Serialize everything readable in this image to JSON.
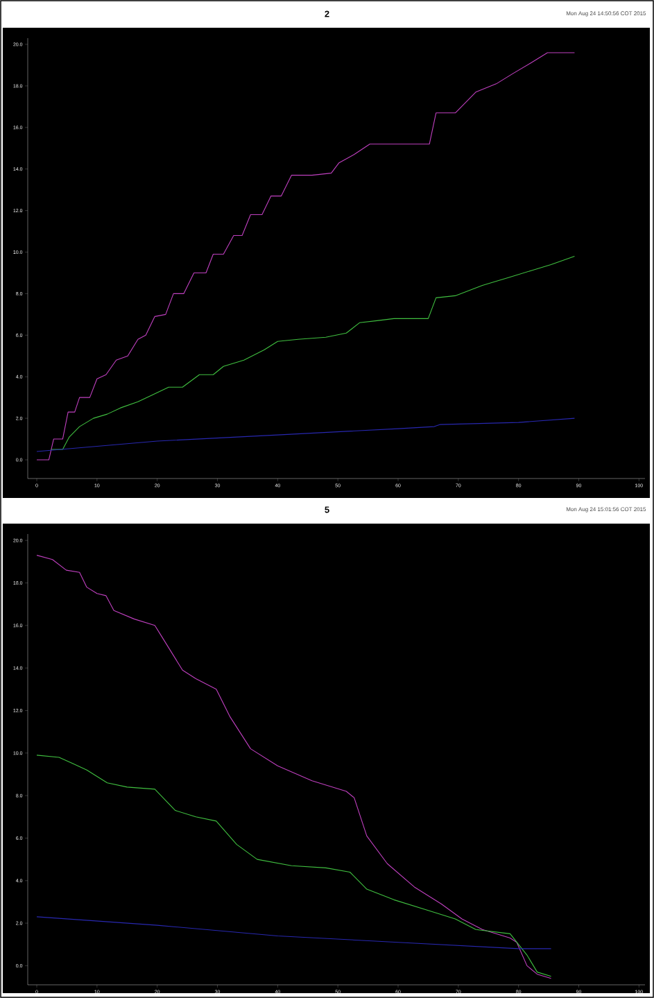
{
  "chart_data": [
    {
      "type": "line",
      "title": "2",
      "subtitle": "Mon Aug 24 14:50:56 COT 2015",
      "xlim": [
        -1.5,
        101
      ],
      "ylim": [
        -0.9,
        20.3
      ],
      "xticks": [
        0,
        10,
        20,
        30,
        40,
        50,
        60,
        70,
        80,
        90,
        100
      ],
      "yticks": [
        {
          "value": 0,
          "label": "0.0"
        },
        {
          "value": 2,
          "label": "2.0"
        },
        {
          "value": 4,
          "label": "4.0"
        },
        {
          "value": 6,
          "label": "6.0"
        },
        {
          "value": 8,
          "label": "8.0"
        },
        {
          "value": 10,
          "label": "10.0"
        },
        {
          "value": 12,
          "label": "12.0"
        },
        {
          "value": 14,
          "label": "14.0"
        },
        {
          "value": 16,
          "label": "16.0"
        },
        {
          "value": 18,
          "label": "18.0"
        },
        {
          "value": 20,
          "label": "20.0"
        }
      ],
      "series": [
        {
          "color": "#c040c0",
          "x": [
            0,
            2,
            2.8,
            4.3,
            5.2,
            6.3,
            7.1,
            8.8,
            10,
            11.5,
            13.2,
            15.1,
            16.8,
            18.1,
            19.6,
            21.4,
            22.7,
            24.4,
            26.1,
            28.1,
            29.3,
            31,
            32.7,
            34.1,
            35.5,
            37.4,
            38.9,
            40.6,
            42.3,
            45.7,
            48.9,
            50.2,
            52.7,
            55.3,
            56.5,
            65.2,
            66.3,
            69.5,
            72.9,
            76.3,
            79.1,
            82,
            84.8,
            87.4,
            89.3
          ],
          "values": [
            0,
            0,
            1.0,
            1.0,
            2.3,
            2.3,
            3.0,
            3.0,
            3.9,
            4.1,
            4.8,
            5.0,
            5.8,
            6.0,
            6.9,
            7.0,
            8.0,
            8.0,
            9.0,
            9.0,
            9.9,
            9.9,
            10.8,
            10.8,
            11.8,
            11.8,
            12.7,
            12.7,
            13.7,
            13.7,
            13.8,
            14.3,
            14.7,
            15.2,
            15.2,
            15.2,
            16.7,
            16.7,
            17.7,
            18.1,
            18.6,
            19.1,
            19.6,
            19.6,
            19.6
          ]
        },
        {
          "color": "#40c040",
          "x": [
            2.4,
            4.3,
            5.4,
            7.1,
            9.4,
            11.7,
            13.9,
            16.8,
            19,
            21.9,
            24.2,
            27,
            29.3,
            31,
            34.4,
            37.8,
            40,
            43.4,
            48,
            51.4,
            53.6,
            56.5,
            59.3,
            65,
            66.3,
            69.5,
            74,
            78.6,
            82,
            85.4,
            89.3
          ],
          "values": [
            0.5,
            0.5,
            1.1,
            1.6,
            2.0,
            2.2,
            2.5,
            2.8,
            3.1,
            3.5,
            3.5,
            4.1,
            4.1,
            4.5,
            4.8,
            5.3,
            5.7,
            5.8,
            5.9,
            6.1,
            6.6,
            6.7,
            6.8,
            6.8,
            7.8,
            7.9,
            8.4,
            8.8,
            9.1,
            9.4,
            9.8
          ]
        },
        {
          "color": "#2828b0",
          "x": [
            0,
            20,
            40,
            60,
            66,
            67,
            80,
            89.3
          ],
          "values": [
            0.4,
            0.9,
            1.2,
            1.5,
            1.6,
            1.7,
            1.8,
            2.0
          ]
        }
      ]
    },
    {
      "type": "line",
      "title": "5",
      "subtitle": "Mon Aug 24 15:01:56 COT 2015",
      "xlim": [
        -1.5,
        101
      ],
      "ylim": [
        -0.9,
        20.3
      ],
      "xticks": [
        0,
        10,
        20,
        30,
        40,
        50,
        60,
        70,
        80,
        90,
        100
      ],
      "yticks": [
        {
          "value": 0,
          "label": "0.0"
        },
        {
          "value": 2,
          "label": "2.0"
        },
        {
          "value": 4,
          "label": "4.0"
        },
        {
          "value": 6,
          "label": "6.0"
        },
        {
          "value": 8,
          "label": "8.0"
        },
        {
          "value": 10,
          "label": "10.0"
        },
        {
          "value": 12,
          "label": "12.0"
        },
        {
          "value": 14,
          "label": "14.0"
        },
        {
          "value": 16,
          "label": "16.0"
        },
        {
          "value": 18,
          "label": "18.0"
        },
        {
          "value": 20,
          "label": "20.0"
        }
      ],
      "series": [
        {
          "color": "#c040c0",
          "x": [
            0,
            2.6,
            4.9,
            7.1,
            8.3,
            10,
            11.5,
            12.8,
            16.2,
            19.6,
            20.7,
            24.2,
            26.4,
            29.8,
            32.1,
            35.5,
            40,
            45.7,
            51.4,
            52.7,
            54.8,
            58.2,
            62.7,
            67.2,
            70.6,
            74,
            78.6,
            79.7,
            81.4,
            83.1,
            85.4
          ],
          "values": [
            19.3,
            19.1,
            18.6,
            18.5,
            17.8,
            17.5,
            17.4,
            16.7,
            16.3,
            16.0,
            15.5,
            13.9,
            13.5,
            13.0,
            11.7,
            10.2,
            9.4,
            8.7,
            8.2,
            7.9,
            6.1,
            4.8,
            3.7,
            2.9,
            2.2,
            1.7,
            1.3,
            1.1,
            0.0,
            -0.4,
            -0.6
          ]
        },
        {
          "color": "#40c040",
          "x": [
            0,
            3.7,
            6,
            8.3,
            11.7,
            15,
            19.6,
            23,
            26.4,
            29.8,
            33.2,
            36.6,
            42.3,
            48,
            52,
            54.8,
            59.3,
            65,
            69.5,
            72.9,
            78.6,
            81.4,
            83.1,
            85.4
          ],
          "values": [
            9.9,
            9.8,
            9.5,
            9.2,
            8.6,
            8.4,
            8.3,
            7.3,
            7.0,
            6.8,
            5.7,
            5.0,
            4.7,
            4.6,
            4.4,
            3.6,
            3.1,
            2.6,
            2.2,
            1.7,
            1.5,
            0.5,
            -0.3,
            -0.5
          ]
        },
        {
          "color": "#2828b0",
          "x": [
            0,
            20,
            40,
            60,
            80,
            85.4
          ],
          "values": [
            2.3,
            1.9,
            1.4,
            1.1,
            0.8,
            0.8
          ]
        }
      ]
    }
  ]
}
